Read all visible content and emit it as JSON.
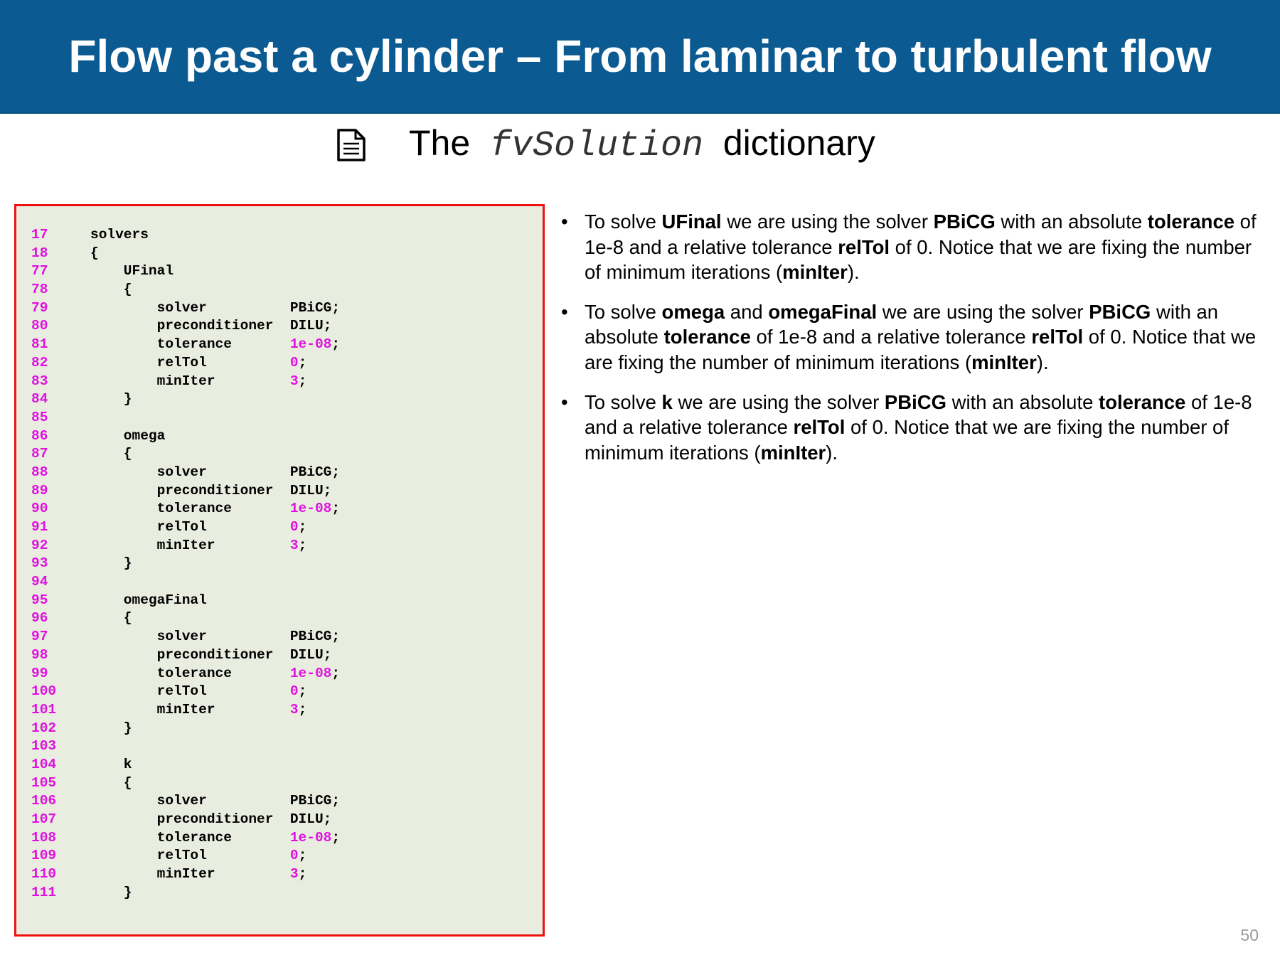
{
  "header": {
    "title": "Flow past a cylinder – From laminar to turbulent flow"
  },
  "subtitle": {
    "before": "The",
    "file": "fvSolution",
    "after": "dictionary"
  },
  "code": [
    {
      "n": "17",
      "code": "solvers"
    },
    {
      "n": "18",
      "code": "{"
    },
    {
      "n": "77",
      "code": "    UFinal"
    },
    {
      "n": "78",
      "code": "    {"
    },
    {
      "n": "79",
      "code": "        solver          PBiCG;"
    },
    {
      "n": "80",
      "code": "        preconditioner  DILU;"
    },
    {
      "n": "81",
      "code": "        tolerance       ",
      "num": "1e-08",
      "end": ";"
    },
    {
      "n": "82",
      "code": "        relTol          ",
      "num": "0",
      "end": ";"
    },
    {
      "n": "83",
      "code": "        minIter         ",
      "num": "3",
      "end": ";"
    },
    {
      "n": "84",
      "code": "    }"
    },
    {
      "n": "85",
      "code": ""
    },
    {
      "n": "86",
      "code": "    omega"
    },
    {
      "n": "87",
      "code": "    {"
    },
    {
      "n": "88",
      "code": "        solver          PBiCG;"
    },
    {
      "n": "89",
      "code": "        preconditioner  DILU;"
    },
    {
      "n": "90",
      "code": "        tolerance       ",
      "num": "1e-08",
      "end": ";"
    },
    {
      "n": "91",
      "code": "        relTol          ",
      "num": "0",
      "end": ";"
    },
    {
      "n": "92",
      "code": "        minIter         ",
      "num": "3",
      "end": ";"
    },
    {
      "n": "93",
      "code": "    }"
    },
    {
      "n": "94",
      "code": ""
    },
    {
      "n": "95",
      "code": "    omegaFinal"
    },
    {
      "n": "96",
      "code": "    {"
    },
    {
      "n": "97",
      "code": "        solver          PBiCG;"
    },
    {
      "n": "98",
      "code": "        preconditioner  DILU;"
    },
    {
      "n": "99",
      "code": "        tolerance       ",
      "num": "1e-08",
      "end": ";"
    },
    {
      "n": "100",
      "code": "        relTol          ",
      "num": "0",
      "end": ";"
    },
    {
      "n": "101",
      "code": "        minIter         ",
      "num": "3",
      "end": ";"
    },
    {
      "n": "102",
      "code": "    }"
    },
    {
      "n": "103",
      "code": ""
    },
    {
      "n": "104",
      "code": "    k"
    },
    {
      "n": "105",
      "code": "    {"
    },
    {
      "n": "106",
      "code": "        solver          PBiCG;"
    },
    {
      "n": "107",
      "code": "        preconditioner  DILU;"
    },
    {
      "n": "108",
      "code": "        tolerance       ",
      "num": "1e-08",
      "end": ";"
    },
    {
      "n": "109",
      "code": "        relTol          ",
      "num": "0",
      "end": ";"
    },
    {
      "n": "110",
      "code": "        minIter         ",
      "num": "3",
      "end": ";"
    },
    {
      "n": "111",
      "code": "    }"
    }
  ],
  "bullets": [
    [
      {
        "text": "To solve "
      },
      {
        "text": "UFinal",
        "bold": true
      },
      {
        "text": " we are using the solver "
      },
      {
        "text": "PBiCG",
        "bold": true
      },
      {
        "text": " with an absolute "
      },
      {
        "text": "tolerance",
        "bold": true
      },
      {
        "text": " of 1e-8 and a relative tolerance "
      },
      {
        "text": "relTol",
        "bold": true
      },
      {
        "text": " of 0. Notice that we are fixing the number of minimum iterations ("
      },
      {
        "text": "minIter",
        "bold": true
      },
      {
        "text": ")."
      }
    ],
    [
      {
        "text": "To solve "
      },
      {
        "text": "omega",
        "bold": true
      },
      {
        "text": " and "
      },
      {
        "text": "omegaFinal",
        "bold": true
      },
      {
        "text": " we are using the solver "
      },
      {
        "text": "PBiCG",
        "bold": true
      },
      {
        "text": " with an absolute "
      },
      {
        "text": "tolerance",
        "bold": true
      },
      {
        "text": " of 1e-8 and a relative tolerance "
      },
      {
        "text": "relTol",
        "bold": true
      },
      {
        "text": " of 0. Notice that we are fixing the number of minimum iterations ("
      },
      {
        "text": "minIter",
        "bold": true
      },
      {
        "text": ")."
      }
    ],
    [
      {
        "text": "To solve "
      },
      {
        "text": "k",
        "bold": true
      },
      {
        "text": " we are using the solver "
      },
      {
        "text": "PBiCG",
        "bold": true
      },
      {
        "text": " with an absolute "
      },
      {
        "text": "tolerance",
        "bold": true
      },
      {
        "text": " of 1e-8 and a relative tolerance "
      },
      {
        "text": "relTol",
        "bold": true
      },
      {
        "text": " of 0. Notice that we are fixing the number of minimum iterations ("
      },
      {
        "text": "minIter",
        "bold": true
      },
      {
        "text": ")."
      }
    ]
  ],
  "page_number": "50"
}
